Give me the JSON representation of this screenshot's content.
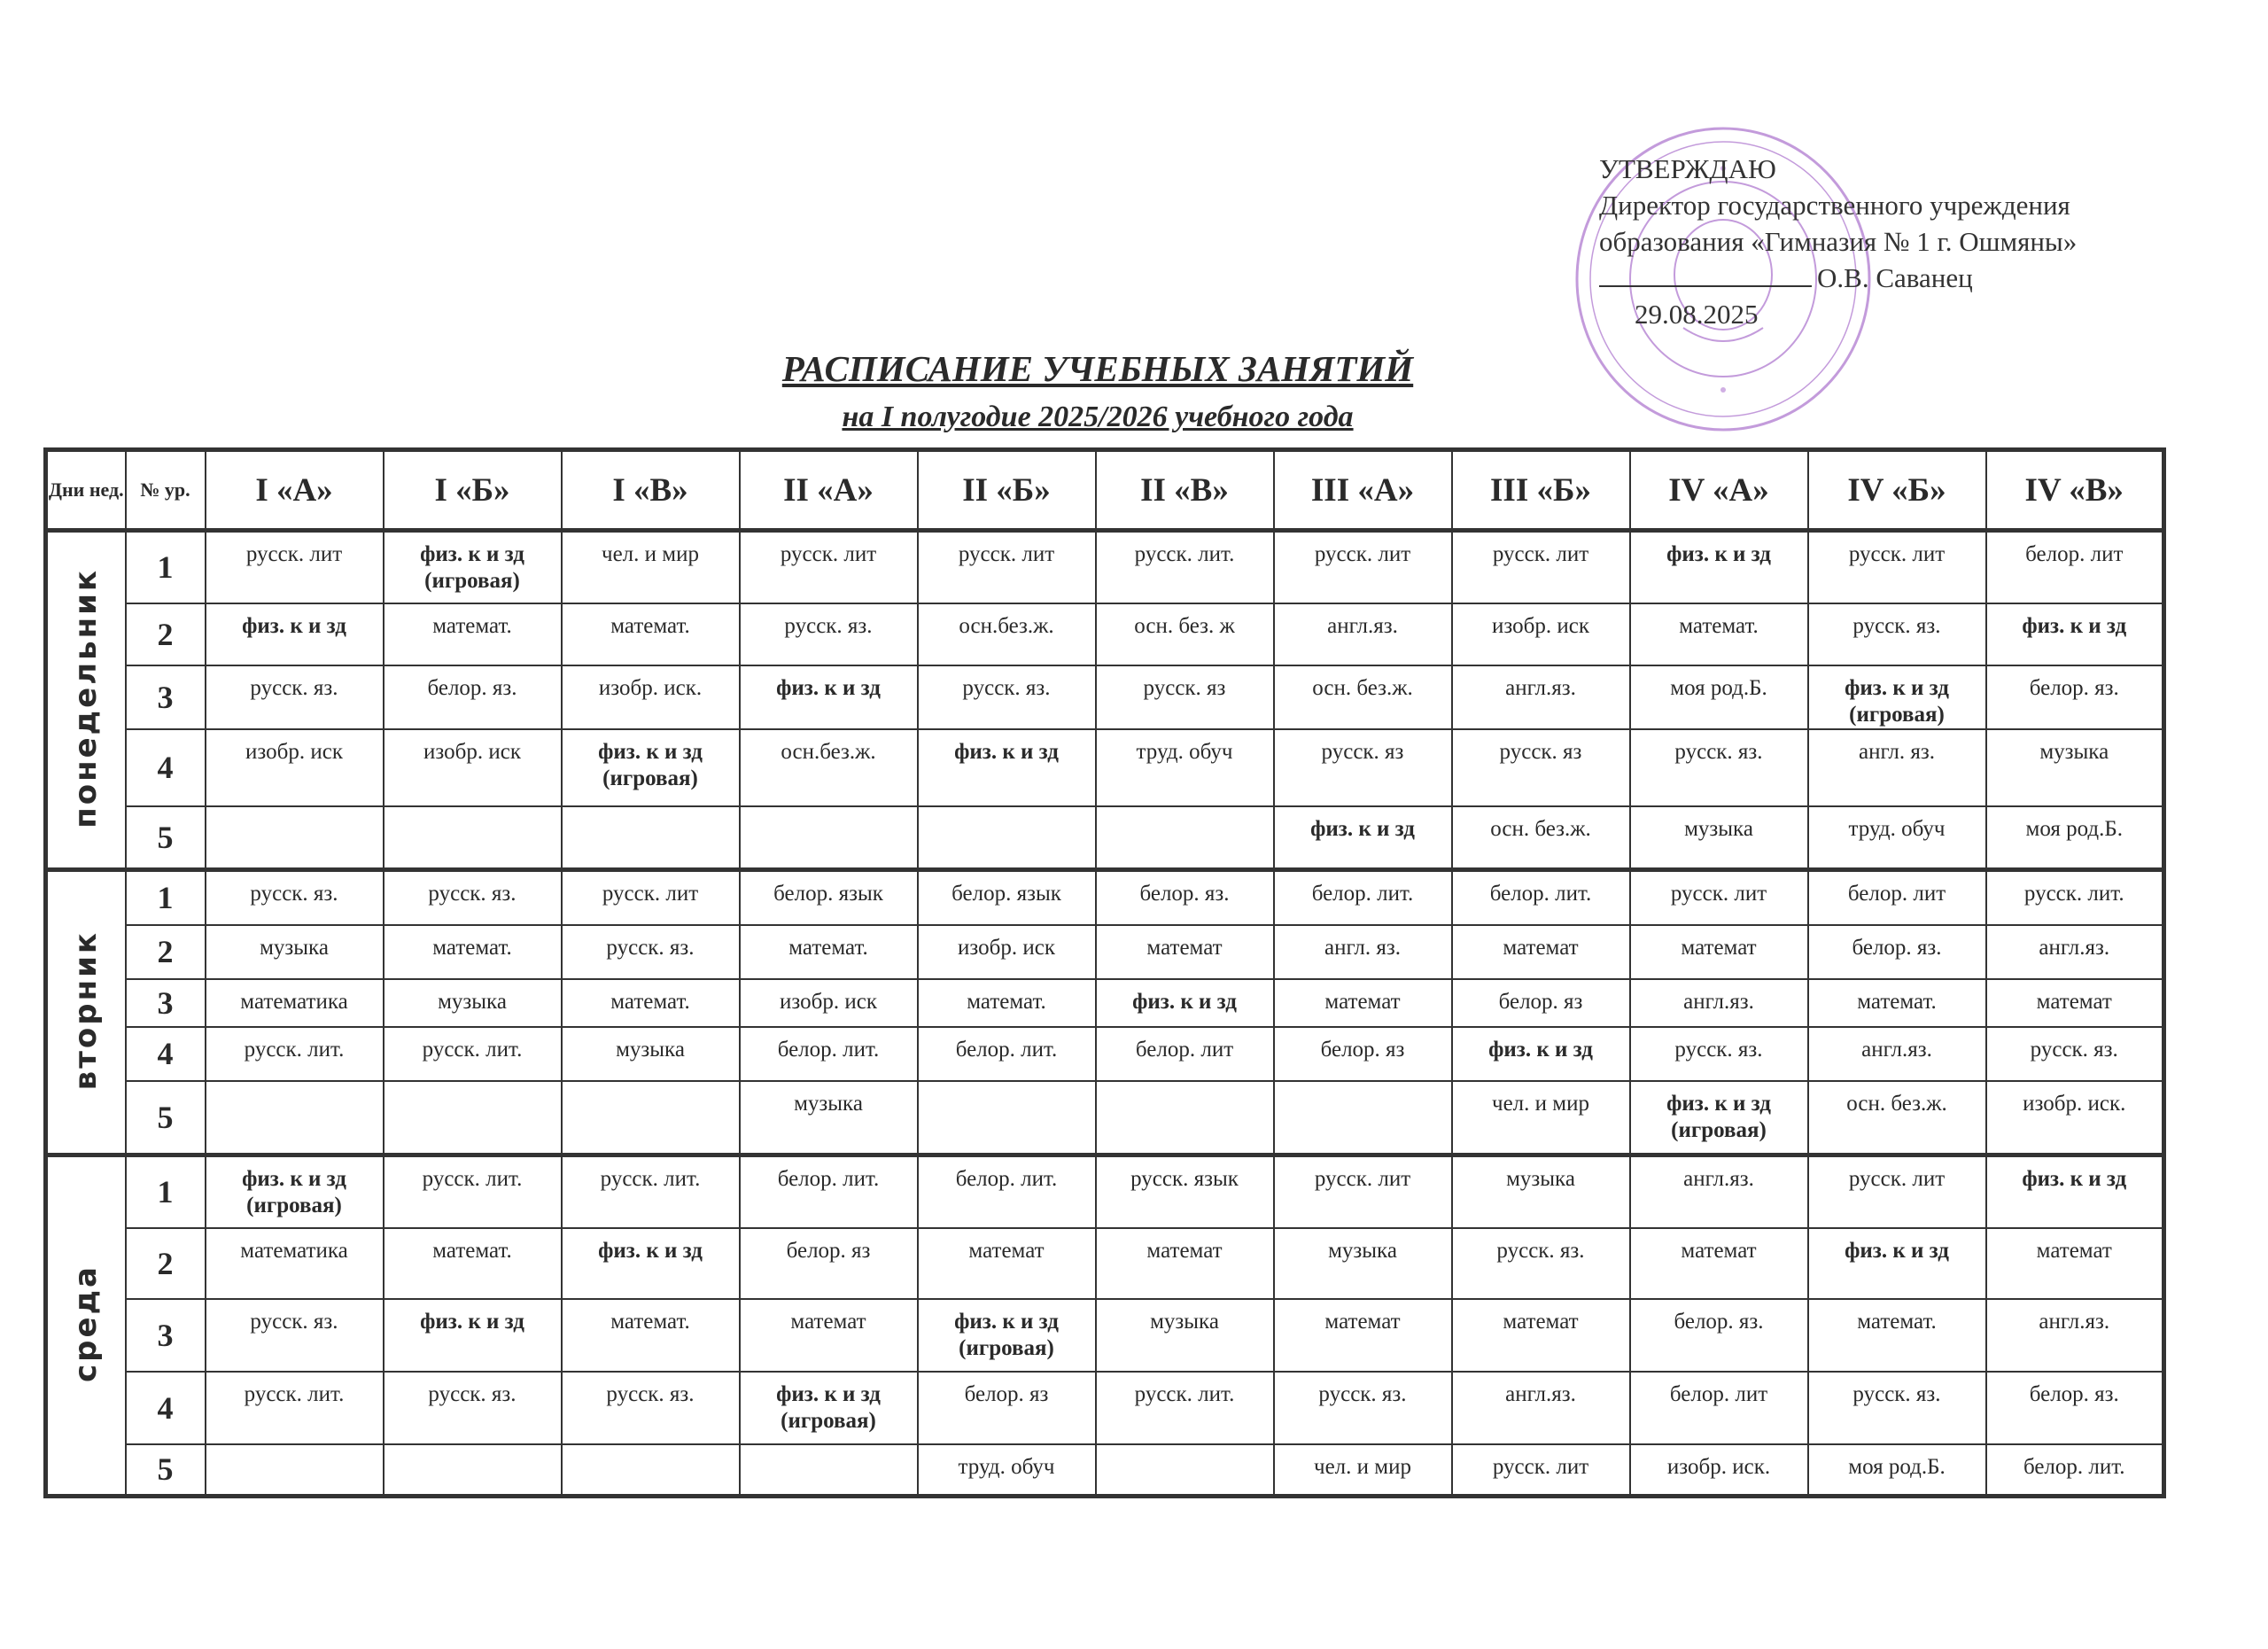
{
  "approval": {
    "heading": "УТВЕРЖДАЮ",
    "line1": "Директор государственного учреждения",
    "line2": "образования «Гимназия № 1 г. Ошмяны»",
    "signer": "О.В. Саванец",
    "date": "29.08.2025",
    "stamp_color": "#b07ad0"
  },
  "title": "РАСПИСАНИЕ УЧЕБНЫХ ЗАНЯТИЙ",
  "subtitle": "на I полугодие 2025/2026 учебного года",
  "table": {
    "day_header": "Дни нед.",
    "num_header": "№ ур.",
    "classes": [
      "I «А»",
      "I «Б»",
      "I «В»",
      "II «А»",
      "II «Б»",
      "II «В»",
      "III «А»",
      "III «Б»",
      "IV «А»",
      "IV «Б»",
      "IV «В»"
    ],
    "days": [
      {
        "name": "понедельник",
        "lessons": [
          {
            "num": "1",
            "cells": [
              "русск. лит",
              "физ. к и зд (игровая)",
              "чел. и мир",
              "русск. лит",
              "русск. лит",
              "русск. лит.",
              "русск. лит",
              "русск. лит",
              "физ. к и зд",
              "русск. лит",
              "белор. лит"
            ]
          },
          {
            "num": "2",
            "cells": [
              "физ. к и зд",
              "математ.",
              "математ.",
              "русск. яз.",
              "осн.без.ж.",
              "осн. без. ж",
              "англ.яз.",
              "изобр. иск",
              "математ.",
              "русск. яз.",
              "физ. к и зд"
            ]
          },
          {
            "num": "3",
            "cells": [
              "русск. яз.",
              "белор. яз.",
              "изобр. иск.",
              "физ. к и зд",
              "русск. яз.",
              "русск. яз",
              "осн. без.ж.",
              "англ.яз.",
              "моя род.Б.",
              "физ. к и зд (игровая)",
              "белор. яз."
            ]
          },
          {
            "num": "4",
            "cells": [
              "изобр. иск",
              "изобр. иск",
              "физ. к и зд (игровая)",
              "осн.без.ж.",
              "физ. к и зд",
              "труд. обуч",
              "русск. яз",
              "русск. яз",
              "русск. яз.",
              "англ. яз.",
              "музыка"
            ]
          },
          {
            "num": "5",
            "cells": [
              "",
              "",
              "",
              "",
              "",
              "",
              "физ. к и зд",
              "осн. без.ж.",
              "музыка",
              "труд. обуч",
              "моя род.Б."
            ]
          }
        ]
      },
      {
        "name": "вторник",
        "lessons": [
          {
            "num": "1",
            "cells": [
              "русск. яз.",
              "русск. яз.",
              "русск. лит",
              "белор. язык",
              "белор. язык",
              "белор. яз.",
              "белор. лит.",
              "белор. лит.",
              "русск. лит",
              "белор. лит",
              "русск. лит."
            ]
          },
          {
            "num": "2",
            "cells": [
              "музыка",
              "математ.",
              "русск. яз.",
              "математ.",
              "изобр. иск",
              "математ",
              "англ. яз.",
              "математ",
              "математ",
              "белор. яз.",
              "англ.яз."
            ]
          },
          {
            "num": "3",
            "cells": [
              "математика",
              "музыка",
              "математ.",
              "изобр. иск",
              "математ.",
              "физ. к и зд",
              "математ",
              "белор. яз",
              "англ.яз.",
              "математ.",
              "математ"
            ]
          },
          {
            "num": "4",
            "cells": [
              "русск. лит.",
              "русск. лит.",
              "музыка",
              "белор. лит.",
              "белор. лит.",
              "белор. лит",
              "белор. яз",
              "физ. к и зд",
              "русск. яз.",
              "англ.яз.",
              "русск. яз."
            ]
          },
          {
            "num": "5",
            "cells": [
              "",
              "",
              "",
              "музыка",
              "",
              "",
              "",
              "чел. и мир",
              "физ. к и зд (игровая)",
              "осн. без.ж.",
              "изобр. иск."
            ]
          }
        ]
      },
      {
        "name": "среда",
        "lessons": [
          {
            "num": "1",
            "cells": [
              "физ. к и зд (игровая)",
              "русск. лит.",
              "русск. лит.",
              "белор. лит.",
              "белор. лит.",
              "русск. язык",
              "русск. лит",
              "музыка",
              "англ.яз.",
              "русск. лит",
              "физ. к и зд"
            ]
          },
          {
            "num": "2",
            "cells": [
              "математика",
              "математ.",
              "физ. к и зд",
              "белор. яз",
              "математ",
              "математ",
              "музыка",
              "русск. яз.",
              "математ",
              "физ. к и зд",
              "математ"
            ]
          },
          {
            "num": "3",
            "cells": [
              "русск. яз.",
              "физ. к и зд",
              "математ.",
              "математ",
              "физ. к и зд (игровая)",
              "музыка",
              "математ",
              "математ",
              "белор. яз.",
              "математ.",
              "англ.яз."
            ]
          },
          {
            "num": "4",
            "cells": [
              "русск. лит.",
              "русск. яз.",
              "русск. яз.",
              "физ. к и зд (игровая)",
              "белор. яз",
              "русск. лит.",
              "русск. яз.",
              "англ.яз.",
              "белор. лит",
              "русск. яз.",
              "белор. яз."
            ]
          },
          {
            "num": "5",
            "cells": [
              "",
              "",
              "",
              "",
              "труд. обуч",
              "",
              "чел. и мир",
              "русск. лит",
              "изобр. иск.",
              "моя род.Б.",
              "белор. лит."
            ]
          }
        ]
      }
    ]
  }
}
